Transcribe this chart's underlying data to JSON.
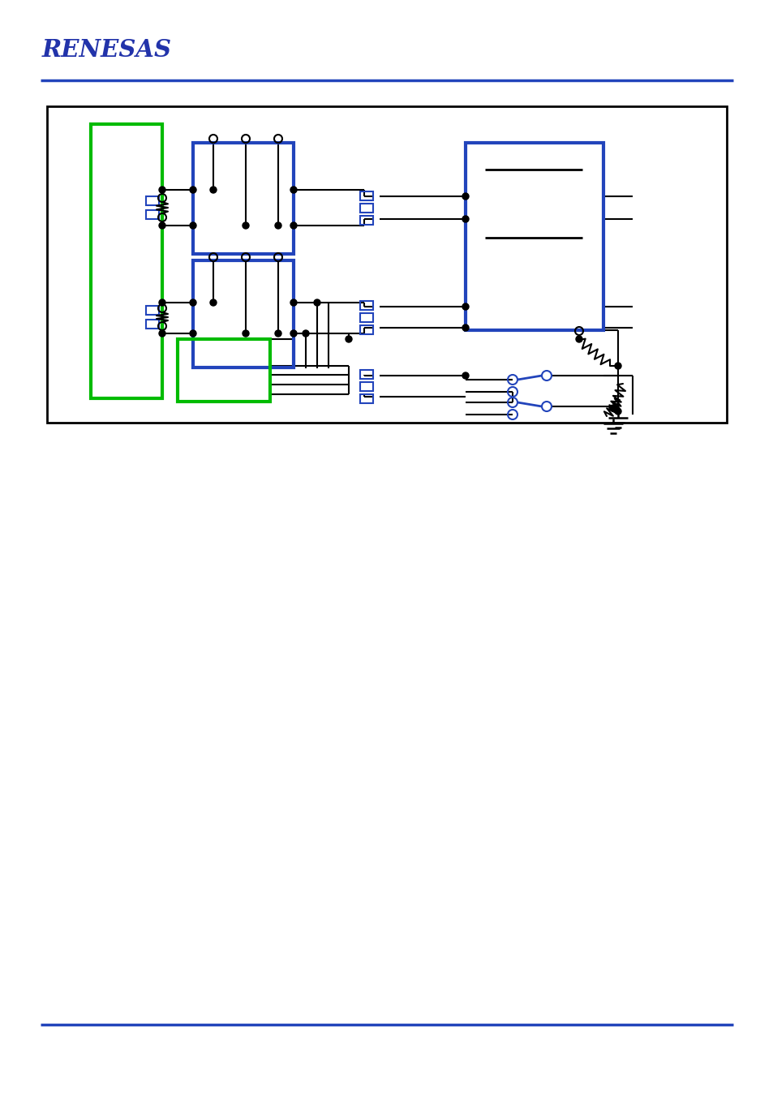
{
  "bg_color": "#ffffff",
  "green_color": "#00bb00",
  "blue_color": "#2244bb",
  "black": "#000000",
  "logo_color": "#2233aa",
  "line_color_blue": "#3344cc"
}
